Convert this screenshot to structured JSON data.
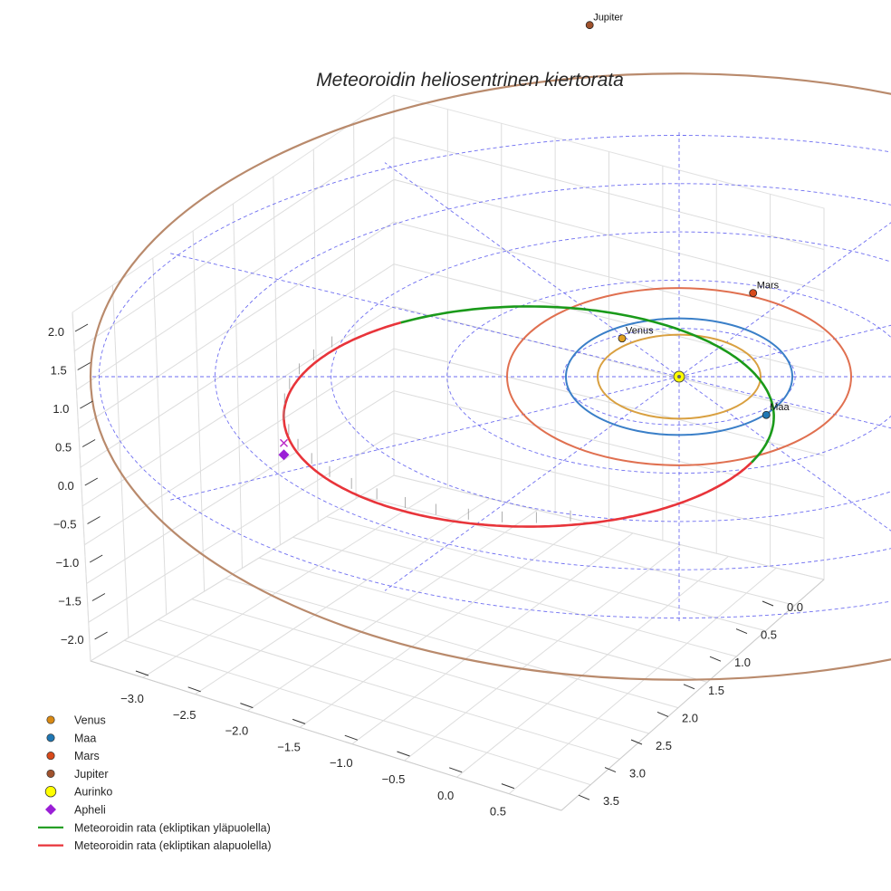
{
  "chart_data": {
    "type": "line3d",
    "title": "Meteoroidin heliosentrinen kiertorata",
    "x_ticks": [
      "−3.0",
      "−2.5",
      "−2.0",
      "−1.5",
      "−1.0",
      "−0.5",
      "0.0",
      "0.5"
    ],
    "y_ticks": [
      "0.0",
      "0.5",
      "1.0",
      "1.5",
      "2.0",
      "2.5",
      "3.0",
      "3.5"
    ],
    "z_ticks": [
      "2.0",
      "1.5",
      "1.0",
      "0.5",
      "0.0",
      "−0.5",
      "−1.0",
      "−1.5",
      "−2.0"
    ],
    "xlim": [
      -3.2,
      0.7
    ],
    "ylim": [
      -0.3,
      3.7
    ],
    "zlim": [
      -2.2,
      2.2
    ],
    "planets": [
      {
        "name": "Venus",
        "a_au": 0.72,
        "color": "#e0a020",
        "orbit_color": "#d9a040"
      },
      {
        "name": "Maa",
        "a_au": 1.0,
        "color": "#1f77b4",
        "orbit_color": "#3a7fc8"
      },
      {
        "name": "Mars",
        "a_au": 1.52,
        "color": "#d84a1b",
        "orbit_color": "#e07050"
      },
      {
        "name": "Jupiter",
        "a_au": 5.2,
        "color": "#a0522d",
        "orbit_color": "#b98a6c"
      }
    ],
    "sun": {
      "name": "Aurinko",
      "color": "#ffff00"
    },
    "meteoroid_orbit": {
      "perihelion_au": 0.98,
      "aphelion_au": 4.3,
      "inclination_deg": 8
    },
    "series": [
      {
        "name": "Meteoroidin rata (ekliptikan yläpuolella)",
        "color": "#1a9a1a"
      },
      {
        "name": "Meteoroidin rata (ekliptikan alapuolella)",
        "color": "#e8343a"
      }
    ],
    "legend": [
      {
        "label": "Venus",
        "marker": "circle",
        "color": "#d98a14"
      },
      {
        "label": "Maa",
        "marker": "circle",
        "color": "#1f77b4"
      },
      {
        "label": "Mars",
        "marker": "circle",
        "color": "#d84a1b"
      },
      {
        "label": "Jupiter",
        "marker": "circle",
        "color": "#a0522d"
      },
      {
        "label": "Aurinko",
        "marker": "circle-big",
        "color": "#ffff00"
      },
      {
        "label": "Apheli",
        "marker": "diamond",
        "color": "#9a1fd6"
      },
      {
        "label": "Meteoroidin rata (ekliptikan yläpuolella)",
        "marker": "line",
        "color": "#1a9a1a"
      },
      {
        "label": "Meteoroidin rata (ekliptikan alapuolella)",
        "marker": "line",
        "color": "#e8343a"
      }
    ],
    "legend_position": "bottom-left"
  }
}
